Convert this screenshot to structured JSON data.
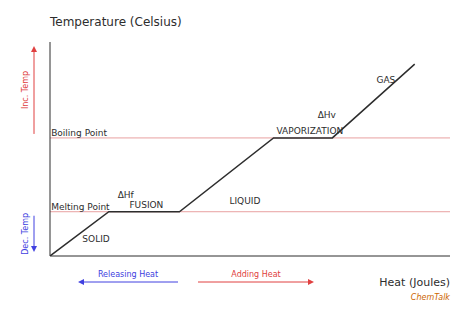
{
  "chart_data": {
    "type": "line",
    "x_label": "Heat (Joules)",
    "y_label": "Temperature (Celsius)",
    "x": [
      0.0,
      1.0,
      2.2,
      3.8,
      4.8,
      6.2
    ],
    "values": [
      0.0,
      1.2,
      1.2,
      3.2,
      3.2,
      5.2
    ],
    "color": "#2d2d2d",
    "xlim": [
      0,
      6.8
    ],
    "ylim": [
      0,
      5.8
    ],
    "xticks": [],
    "yticks": [],
    "tick_labels": false,
    "grid": false,
    "reference_lines": [
      {
        "y": 1.2,
        "color": "#e8a0a0"
      },
      {
        "y": 3.2,
        "color": "#e8a0a0"
      }
    ],
    "annotations": [
      {
        "text": "SOLID",
        "x": 0.55,
        "y": 0.35
      },
      {
        "text": "FUSION",
        "x": 1.35,
        "y": 1.27
      },
      {
        "text": "ΔHf",
        "x": 1.15,
        "y": 1.55
      },
      {
        "text": "LIQUID",
        "x": 3.05,
        "y": 1.38
      },
      {
        "text": "VAPORIZATION",
        "x": 3.85,
        "y": 3.27
      },
      {
        "text": "ΔHv",
        "x": 4.55,
        "y": 3.7
      },
      {
        "text": "GAS",
        "x": 5.55,
        "y": 4.65
      },
      {
        "text": "Melting Point",
        "x": 0.02,
        "y": 1.22
      },
      {
        "text": "Boiling Point",
        "x": 0.02,
        "y": 3.22
      }
    ],
    "arrows": [
      {
        "text": "Inc. Temp",
        "color": "#e04040",
        "direction": "up"
      },
      {
        "text": "Dec. Temp",
        "color": "#4040e0",
        "direction": "down"
      },
      {
        "text": "Releasing Heat",
        "color": "#4040e0",
        "direction": "left"
      },
      {
        "text": "Adding Heat",
        "color": "#e04040",
        "direction": "right"
      }
    ],
    "footnote": {
      "text": "ChemTalk",
      "color": "#cc6600"
    }
  }
}
